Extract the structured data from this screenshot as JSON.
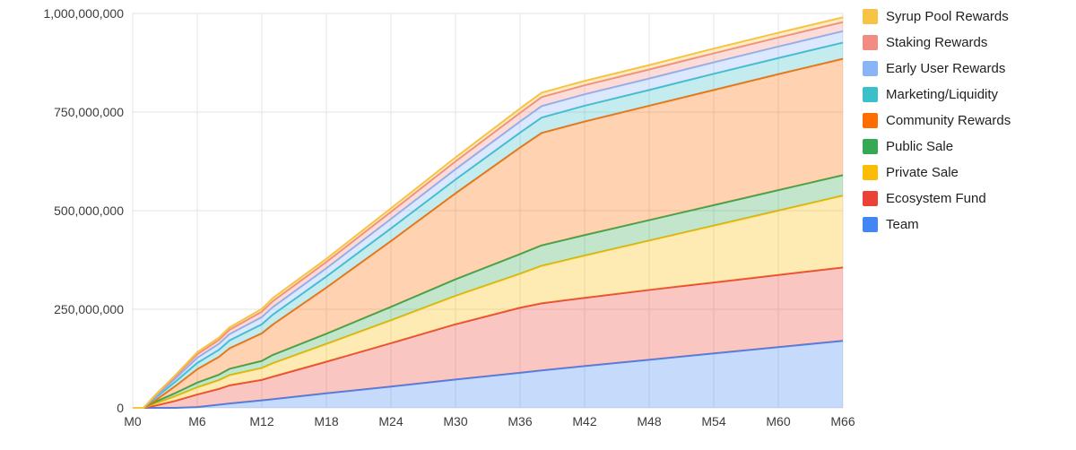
{
  "chart_data": {
    "type": "area",
    "stacked": true,
    "title": "",
    "xlabel": "",
    "ylabel": "",
    "legend_position": "right",
    "grid": true,
    "ylim": [
      0,
      1000000000
    ],
    "y_ticks": [
      {
        "value": 0,
        "label": "0"
      },
      {
        "value": 250000000,
        "label": "250,000,000"
      },
      {
        "value": 500000000,
        "label": "500,000,000"
      },
      {
        "value": 750000000,
        "label": "750,000,000"
      },
      {
        "value": 1000000000,
        "label": "1,000,000,000"
      }
    ],
    "x_ticks": [
      {
        "value": 0,
        "label": "M0"
      },
      {
        "value": 6,
        "label": "M6"
      },
      {
        "value": 12,
        "label": "M12"
      },
      {
        "value": 18,
        "label": "M18"
      },
      {
        "value": 24,
        "label": "M24"
      },
      {
        "value": 30,
        "label": "M30"
      },
      {
        "value": 36,
        "label": "M36"
      },
      {
        "value": 42,
        "label": "M42"
      },
      {
        "value": 48,
        "label": "M48"
      },
      {
        "value": 54,
        "label": "M54"
      },
      {
        "value": 60,
        "label": "M60"
      },
      {
        "value": 66,
        "label": "M66"
      }
    ],
    "months": [
      0,
      1,
      2,
      4,
      6,
      8,
      9,
      12,
      13,
      18,
      24,
      30,
      36,
      38,
      42,
      48,
      54,
      60,
      66
    ],
    "series": [
      {
        "name": "Team",
        "color": "#4285F4",
        "values": [
          0,
          0,
          0,
          0,
          2000000,
          8000000,
          11000000,
          19000000,
          22000000,
          37000000,
          54000000,
          72000000,
          89000000,
          95000000,
          106000000,
          122000000,
          138000000,
          154000000,
          170000000
        ]
      },
      {
        "name": "Ecosystem Fund",
        "color": "#EA4335",
        "values": [
          0,
          0,
          5000000,
          18000000,
          32000000,
          40000000,
          46000000,
          52000000,
          57000000,
          80000000,
          110000000,
          140000000,
          165000000,
          170000000,
          173000000,
          177000000,
          180000000,
          183000000,
          186000000
        ]
      },
      {
        "name": "Private Sale",
        "color": "#FBBC04",
        "values": [
          0,
          0,
          5000000,
          12000000,
          18000000,
          22000000,
          26000000,
          30000000,
          34000000,
          45000000,
          58000000,
          72000000,
          86000000,
          95000000,
          107000000,
          125000000,
          144000000,
          163000000,
          182000000
        ]
      },
      {
        "name": "Public Sale",
        "color": "#34A853",
        "values": [
          0,
          0,
          4000000,
          8000000,
          12000000,
          14000000,
          16000000,
          18000000,
          21000000,
          26000000,
          34000000,
          42000000,
          50000000,
          52000000,
          52000000,
          52000000,
          52000000,
          52000000,
          52000000
        ]
      },
      {
        "name": "Community Rewards",
        "color": "#FF6D00",
        "values": [
          0,
          0,
          3000000,
          18000000,
          34000000,
          45000000,
          52000000,
          70000000,
          77000000,
          117000000,
          167000000,
          218000000,
          270000000,
          285000000,
          288000000,
          290000000,
          292000000,
          294000000,
          295000000
        ]
      },
      {
        "name": "Marketing/Liquidity",
        "color": "#3BBFC9",
        "values": [
          0,
          0,
          6000000,
          11000000,
          16000000,
          18000000,
          20000000,
          23000000,
          25000000,
          28000000,
          32000000,
          35000000,
          38000000,
          39000000,
          40000000,
          40000000,
          41000000,
          41000000,
          41000000
        ]
      },
      {
        "name": "Early User Rewards",
        "color": "#8AB4F8",
        "values": [
          0,
          0,
          3000000,
          8000000,
          13000000,
          15000000,
          16000000,
          18000000,
          19000000,
          21000000,
          24000000,
          26000000,
          28000000,
          29000000,
          29000000,
          29000000,
          29000000,
          29000000,
          29000000
        ]
      },
      {
        "name": "Staking Rewards",
        "color": "#F28B82",
        "values": [
          0,
          0,
          2000000,
          6000000,
          9000000,
          10000000,
          11000000,
          14000000,
          15000000,
          16000000,
          18000000,
          20000000,
          22000000,
          23000000,
          23000000,
          23000000,
          23000000,
          23000000,
          23000000
        ]
      },
      {
        "name": "Syrup Pool Rewards",
        "color": "#F6C344",
        "values": [
          0,
          0,
          2000000,
          3000000,
          5000000,
          6000000,
          6000000,
          7000000,
          8000000,
          8000000,
          9000000,
          10000000,
          11000000,
          11000000,
          11000000,
          11000000,
          12000000,
          12000000,
          12000000
        ]
      }
    ],
    "legend_order_top_to_bottom": [
      "Syrup Pool Rewards",
      "Staking Rewards",
      "Early User Rewards",
      "Marketing/Liquidity",
      "Community Rewards",
      "Public Sale",
      "Private Sale",
      "Ecosystem Fund",
      "Team"
    ],
    "style": {
      "fill_opacity": 0.3,
      "line_width": 2,
      "grid_color": "#e3e3e3",
      "axis_text_color": "#3c3c3c",
      "background": "#ffffff"
    }
  }
}
